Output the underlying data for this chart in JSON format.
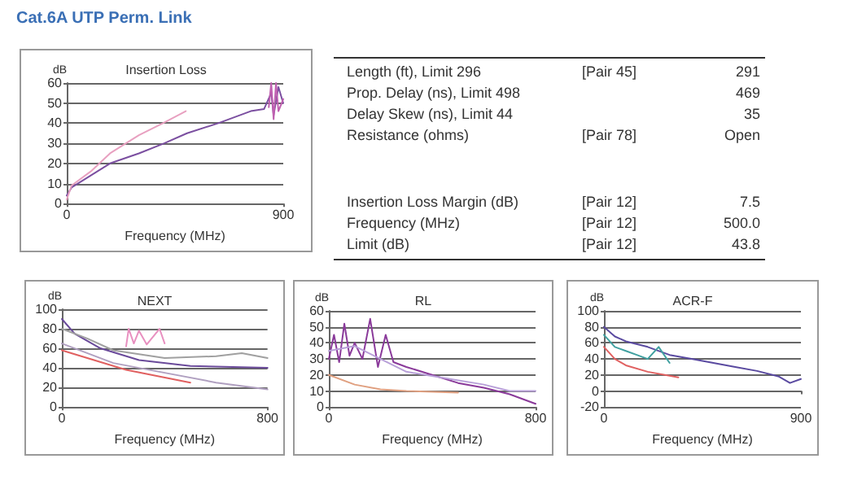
{
  "chart_data": [
    {
      "type": "other",
      "title": "Cat.6A UTP Perm. Link",
      "annotations": [
        "Length (ft), Limit 296",
        "[Pair 45]",
        "291",
        "Prop. Delay (ns), Limit 498",
        null,
        "469",
        "Delay Skew (ns), Limit 44",
        null,
        "35",
        "Resistance (ohms)",
        "[Pair 78]",
        "Open",
        "Insertion Loss Margin (dB)",
        "[Pair 12]",
        "7.5",
        "Frequency (MHz)",
        "[Pair 12]",
        "500.0",
        "Limit (dB)",
        "[Pair 12]",
        "43.8"
      ]
    },
    {
      "type": "line",
      "title": "Insertion Loss",
      "xlabel": "Frequency (MHz)",
      "ylabel": "dB",
      "xlim": [
        0,
        900
      ],
      "xticks": [
        0,
        900
      ],
      "ylim": [
        0,
        60
      ],
      "yticks": [
        0,
        10,
        20,
        30,
        40,
        50,
        60
      ],
      "grid": "y",
      "marker": "none",
      "series": [
        {
          "color": "#7b4fa0",
          "x": [
            0,
            20,
            100,
            180,
            300,
            405,
            500,
            630,
            765,
            820,
            850,
            860,
            880,
            900
          ],
          "values": [
            4,
            8,
            14,
            20,
            25,
            30,
            35,
            40,
            46,
            47,
            55,
            44,
            58,
            50
          ]
        },
        {
          "color": "#e8a0c0",
          "x": [
            0,
            20,
            100,
            180,
            300,
            400,
            495
          ],
          "values": [
            2,
            9,
            16,
            25,
            34,
            40,
            46
          ]
        },
        {
          "color": "#c060b0",
          "x": [
            840,
            850,
            860,
            870,
            880,
            900
          ],
          "values": [
            48,
            60,
            42,
            60,
            46,
            52
          ]
        }
      ]
    },
    {
      "type": "line",
      "title": "NEXT",
      "xlabel": "Frequency (MHz)",
      "ylabel": "dB",
      "xlim": [
        0,
        800
      ],
      "xticks": [
        0,
        800
      ],
      "ylim": [
        0,
        100
      ],
      "yticks": [
        0,
        20,
        40,
        60,
        80,
        100
      ],
      "grid": "y",
      "marker": "none",
      "series": [
        {
          "color": "#6a4a9a",
          "x": [
            0,
            50,
            150,
            300,
            500,
            800
          ],
          "values": [
            90,
            75,
            60,
            48,
            42,
            40
          ]
        },
        {
          "color": "#a0a0a0",
          "x": [
            0,
            100,
            200,
            400,
            600,
            700,
            800
          ],
          "values": [
            80,
            70,
            58,
            50,
            52,
            55,
            50
          ]
        },
        {
          "color": "#e06060",
          "x": [
            0,
            250,
            500
          ],
          "values": [
            58,
            38,
            25
          ]
        },
        {
          "color": "#b0a0c0",
          "x": [
            0,
            200,
            400,
            600,
            800
          ],
          "values": [
            65,
            45,
            35,
            25,
            18
          ]
        },
        {
          "color": "#e890c0",
          "x": [
            250,
            260,
            280,
            300,
            330,
            380,
            400
          ],
          "values": [
            62,
            80,
            65,
            78,
            64,
            80,
            65
          ]
        }
      ]
    },
    {
      "type": "line",
      "title": "RL",
      "xlabel": "Frequency (MHz)",
      "ylabel": "dB",
      "xlim": [
        0,
        800
      ],
      "xticks": [
        0,
        800
      ],
      "ylim": [
        0,
        60
      ],
      "yticks": [
        0,
        10,
        20,
        30,
        40,
        50,
        60
      ],
      "grid": "y",
      "marker": "none",
      "series": [
        {
          "color": "#8a3a9a",
          "x": [
            0,
            20,
            40,
            60,
            80,
            100,
            130,
            160,
            190,
            220,
            250,
            300,
            400,
            500,
            600,
            700,
            800
          ],
          "values": [
            30,
            45,
            28,
            52,
            32,
            40,
            30,
            55,
            25,
            45,
            28,
            25,
            20,
            15,
            12,
            8,
            2
          ]
        },
        {
          "color": "#b8a0d8",
          "x": [
            0,
            100,
            200,
            300,
            450,
            600,
            700,
            800
          ],
          "values": [
            35,
            38,
            30,
            22,
            18,
            14,
            10,
            10
          ]
        },
        {
          "color": "#e0a080",
          "x": [
            0,
            100,
            200,
            300,
            500
          ],
          "values": [
            20,
            14,
            11,
            10,
            9
          ]
        }
      ]
    },
    {
      "type": "line",
      "title": "ACR-F",
      "xlabel": "Frequency (MHz)",
      "ylabel": "dB",
      "xlim": [
        0,
        900
      ],
      "xticks": [
        0,
        900
      ],
      "ylim": [
        -20,
        100
      ],
      "yticks": [
        -20,
        0,
        20,
        40,
        60,
        80,
        100
      ],
      "grid": "y",
      "marker": "none",
      "series": [
        {
          "color": "#5a4aa0",
          "x": [
            0,
            50,
            100,
            200,
            300,
            400,
            500,
            600,
            700,
            800,
            850,
            900
          ],
          "values": [
            80,
            68,
            62,
            55,
            45,
            40,
            35,
            30,
            25,
            18,
            10,
            15
          ]
        },
        {
          "color": "#40a0a0",
          "x": [
            0,
            50,
            100,
            150,
            200,
            250,
            300
          ],
          "values": [
            70,
            55,
            50,
            45,
            40,
            55,
            35
          ]
        },
        {
          "color": "#e06060",
          "x": [
            0,
            50,
            100,
            200,
            340
          ],
          "values": [
            55,
            40,
            32,
            24,
            17
          ]
        }
      ]
    }
  ]
}
